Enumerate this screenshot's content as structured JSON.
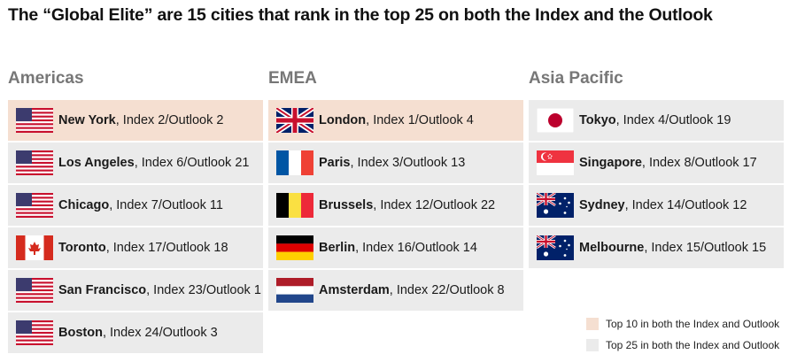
{
  "title": "The “Global Elite” are 15 cities that rank in the top 25 on both the Index and the Outlook",
  "columns": [
    {
      "header": "Americas",
      "cities": [
        {
          "flag": "us-flag-icon",
          "name": "New York",
          "rest": ", Index 2/Outlook 2",
          "top10": true
        },
        {
          "flag": "us-flag-icon",
          "name": "Los Angeles",
          "rest": ", Index 6/Outlook 21",
          "top10": false
        },
        {
          "flag": "us-flag-icon",
          "name": "Chicago",
          "rest": ", Index 7/Outlook 11",
          "top10": false
        },
        {
          "flag": "canada-flag-icon",
          "name": "Toronto",
          "rest": ", Index 17/Outlook 18",
          "top10": false
        },
        {
          "flag": "us-flag-icon",
          "name": "San Francisco",
          "rest": ", Index 23/Outlook 1",
          "top10": false
        },
        {
          "flag": "us-flag-icon",
          "name": "Boston",
          "rest": ", Index 24/Outlook 3",
          "top10": false
        }
      ]
    },
    {
      "header": "EMEA",
      "cities": [
        {
          "flag": "uk-flag-icon",
          "name": "London",
          "rest": ", Index 1/Outlook 4",
          "top10": true
        },
        {
          "flag": "france-flag-icon",
          "name": "Paris",
          "rest": ", Index 3/Outlook 13",
          "top10": false
        },
        {
          "flag": "belgium-flag-icon",
          "name": "Brussels",
          "rest": ", Index 12/Outlook 22",
          "top10": false
        },
        {
          "flag": "germany-flag-icon",
          "name": "Berlin",
          "rest": ", Index 16/Outlook 14",
          "top10": false
        },
        {
          "flag": "netherlands-flag-icon",
          "name": "Amsterdam",
          "rest": ", Index 22/Outlook 8",
          "top10": false
        }
      ]
    },
    {
      "header": "Asia Pacific",
      "cities": [
        {
          "flag": "japan-flag-icon",
          "name": "Tokyo",
          "rest": ", Index 4/Outlook 19",
          "top10": false
        },
        {
          "flag": "singapore-flag-icon",
          "name": "Singapore",
          "rest": ", Index 8/Outlook 17",
          "top10": false
        },
        {
          "flag": "australia-flag-icon",
          "name": "Sydney",
          "rest": ", Index 14/Outlook 12",
          "top10": false
        },
        {
          "flag": "australia-flag-icon",
          "name": "Melbourne",
          "rest": ", Index 15/Outlook 15",
          "top10": false
        }
      ]
    }
  ],
  "legend": {
    "top10_label": "Top 10 in both the Index and Outlook",
    "top25_label": "Top 25 in both the Index and Outlook",
    "top10_color": "#f5dfd1",
    "top25_color": "#ebebeb"
  }
}
